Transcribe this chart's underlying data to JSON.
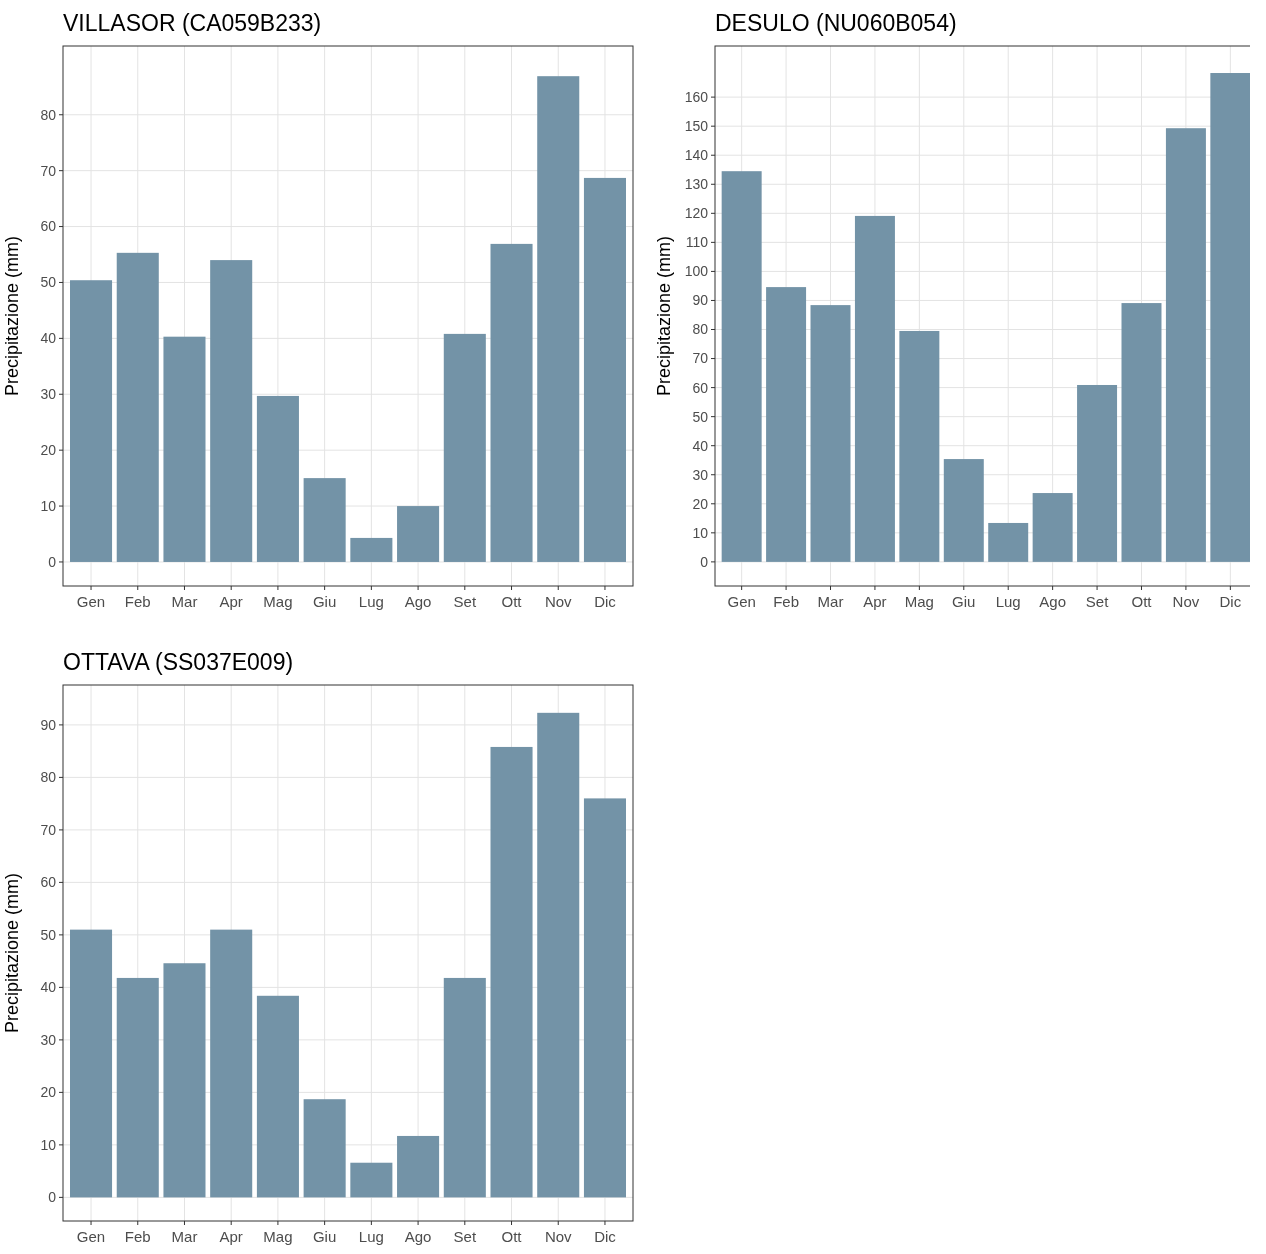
{
  "chart_data": [
    {
      "type": "bar",
      "title": "VILLASOR (CA059B233)",
      "ylabel": "Precipitazione (mm)",
      "categories": [
        "Gen",
        "Feb",
        "Mar",
        "Apr",
        "Mag",
        "Giu",
        "Lug",
        "Ago",
        "Set",
        "Ott",
        "Nov",
        "Dic"
      ],
      "values": [
        50.4,
        55.3,
        40.3,
        54.0,
        29.7,
        15.0,
        4.3,
        10.0,
        40.8,
        56.9,
        86.9,
        68.7
      ],
      "color": "#7393a7",
      "ylim": [
        -4.3,
        92.3
      ],
      "yticks": [
        0,
        10,
        20,
        30,
        40,
        50,
        60,
        70,
        80
      ],
      "grid": true
    },
    {
      "type": "bar",
      "title": "DESULO (NU060B054)",
      "ylabel": "Precipitazione (mm)",
      "categories": [
        "Gen",
        "Feb",
        "Mar",
        "Apr",
        "Mag",
        "Giu",
        "Lug",
        "Ago",
        "Set",
        "Ott",
        "Nov",
        "Dic"
      ],
      "values": [
        134.5,
        94.6,
        88.4,
        119.1,
        79.5,
        35.4,
        13.4,
        23.7,
        60.9,
        89.1,
        149.3,
        168.3
      ],
      "color": "#7393a7",
      "ylim": [
        -8.3,
        177.6
      ],
      "yticks": [
        0,
        10,
        20,
        30,
        40,
        50,
        60,
        70,
        80,
        90,
        100,
        110,
        120,
        130,
        140,
        150,
        160
      ],
      "grid": true
    },
    {
      "type": "bar",
      "title": "OTTAVA (SS037E009)",
      "ylabel": "Precipitazione (mm)",
      "categories": [
        "Gen",
        "Feb",
        "Mar",
        "Apr",
        "Mag",
        "Giu",
        "Lug",
        "Ago",
        "Set",
        "Ott",
        "Nov",
        "Dic"
      ],
      "values": [
        51.0,
        41.8,
        44.6,
        51.0,
        38.4,
        18.7,
        6.6,
        11.7,
        41.8,
        85.8,
        92.3,
        76.0
      ],
      "color": "#7393a7",
      "ylim": [
        -4.5,
        97.6
      ],
      "yticks": [
        0,
        10,
        20,
        30,
        40,
        50,
        60,
        70,
        80,
        90
      ],
      "grid": true
    }
  ]
}
